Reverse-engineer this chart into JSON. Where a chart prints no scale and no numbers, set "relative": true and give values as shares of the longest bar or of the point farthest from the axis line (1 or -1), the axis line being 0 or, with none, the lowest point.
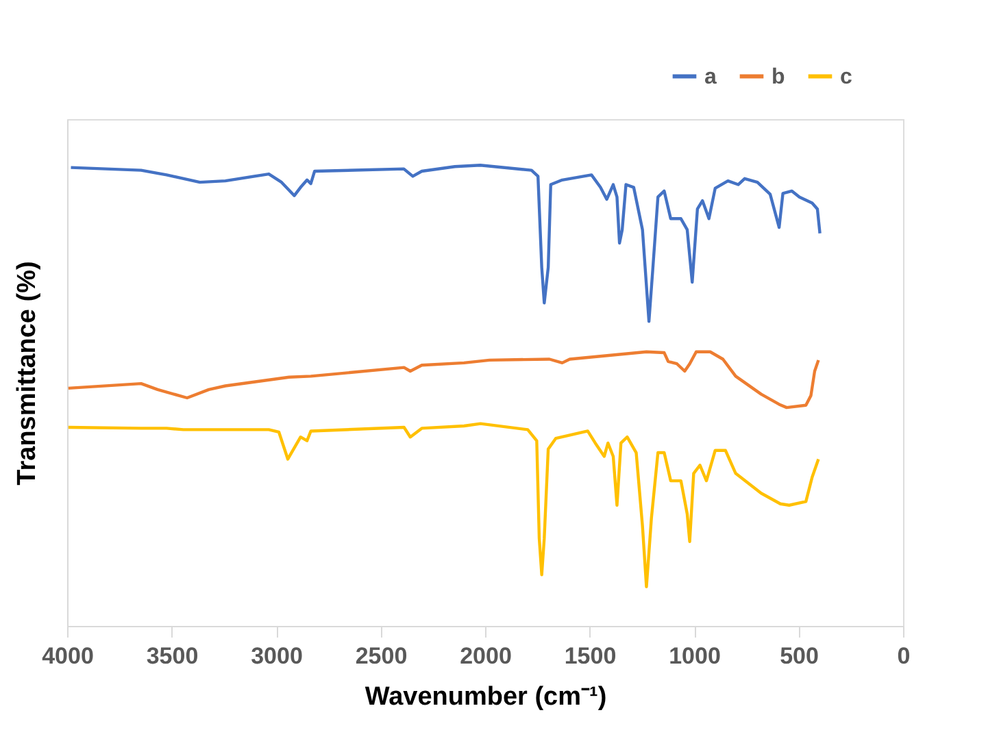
{
  "chart_data": {
    "type": "line",
    "relative": true,
    "xlabel": "Wavenumber (cm⁻¹)",
    "ylabel": "Transmittance (%)",
    "xlim": [
      4000,
      0
    ],
    "xticks": [
      4000,
      3500,
      3000,
      2500,
      2000,
      1500,
      1000,
      500,
      0
    ],
    "grid": false,
    "legend": "top right",
    "marker": "none",
    "line_style": "solid",
    "series": [
      {
        "name": "a",
        "color": "#4472c4",
        "x": [
          3982,
          3646,
          3524,
          3365,
          3243,
          3035,
          2974,
          2913,
          2883,
          2852,
          2834,
          2816,
          2389,
          2346,
          2303,
          2145,
          2023,
          1778,
          1747,
          1729,
          1717,
          1698,
          1686,
          1631,
          1491,
          1448,
          1418,
          1387,
          1369,
          1357,
          1344,
          1326,
          1289,
          1247,
          1216,
          1198,
          1173,
          1143,
          1112,
          1063,
          1033,
          1009,
          984,
          960,
          929,
          899,
          838,
          789,
          758,
          697,
          636,
          593,
          575,
          532,
          496,
          435,
          410,
          398
        ],
        "values": [
          0.995,
          0.989,
          0.979,
          0.963,
          0.966,
          0.981,
          0.963,
          0.934,
          0.952,
          0.968,
          0.96,
          0.987,
          0.992,
          0.976,
          0.987,
          0.997,
          1.0,
          0.989,
          0.976,
          0.778,
          0.701,
          0.778,
          0.958,
          0.968,
          0.979,
          0.952,
          0.926,
          0.958,
          0.931,
          0.831,
          0.86,
          0.958,
          0.952,
          0.86,
          0.661,
          0.772,
          0.931,
          0.944,
          0.884,
          0.884,
          0.86,
          0.746,
          0.905,
          0.923,
          0.884,
          0.95,
          0.966,
          0.958,
          0.971,
          0.963,
          0.937,
          0.865,
          0.939,
          0.944,
          0.931,
          0.918,
          0.905,
          0.852
        ]
      },
      {
        "name": "b",
        "color": "#ed7d31",
        "x": [
          3994,
          3646,
          3567,
          3426,
          3322,
          3243,
          2938,
          2834,
          2388,
          2358,
          2303,
          2101,
          1979,
          1692,
          1631,
          1595,
          1228,
          1143,
          1124,
          1082,
          1045,
          1021,
          990,
          923,
          862,
          801,
          679,
          593,
          557,
          465,
          441,
          423,
          405
        ],
        "values": [
          0.516,
          0.526,
          0.513,
          0.495,
          0.513,
          0.521,
          0.54,
          0.542,
          0.561,
          0.553,
          0.566,
          0.571,
          0.577,
          0.579,
          0.571,
          0.579,
          0.595,
          0.593,
          0.574,
          0.569,
          0.553,
          0.569,
          0.595,
          0.595,
          0.579,
          0.542,
          0.503,
          0.481,
          0.474,
          0.479,
          0.5,
          0.553,
          0.577
        ]
      },
      {
        "name": "c",
        "color": "#ffc000",
        "x": [
          3994,
          3646,
          3524,
          3444,
          3035,
          2987,
          2944,
          2883,
          2852,
          2834,
          2388,
          2358,
          2303,
          2101,
          2022,
          1796,
          1753,
          1741,
          1729,
          1717,
          1698,
          1662,
          1509,
          1473,
          1430,
          1412,
          1387,
          1369,
          1350,
          1320,
          1277,
          1247,
          1228,
          1204,
          1173,
          1143,
          1112,
          1063,
          1033,
          1021,
          1002,
          972,
          941,
          899,
          850,
          801,
          679,
          587,
          545,
          465,
          435,
          405
        ],
        "values": [
          0.431,
          0.429,
          0.429,
          0.426,
          0.426,
          0.421,
          0.362,
          0.41,
          0.402,
          0.423,
          0.431,
          0.41,
          0.429,
          0.434,
          0.439,
          0.426,
          0.402,
          0.19,
          0.111,
          0.19,
          0.384,
          0.407,
          0.423,
          0.397,
          0.368,
          0.397,
          0.368,
          0.262,
          0.397,
          0.41,
          0.376,
          0.217,
          0.085,
          0.235,
          0.376,
          0.376,
          0.315,
          0.315,
          0.243,
          0.183,
          0.331,
          0.349,
          0.315,
          0.381,
          0.381,
          0.331,
          0.288,
          0.265,
          0.262,
          0.27,
          0.323,
          0.362
        ]
      }
    ]
  }
}
